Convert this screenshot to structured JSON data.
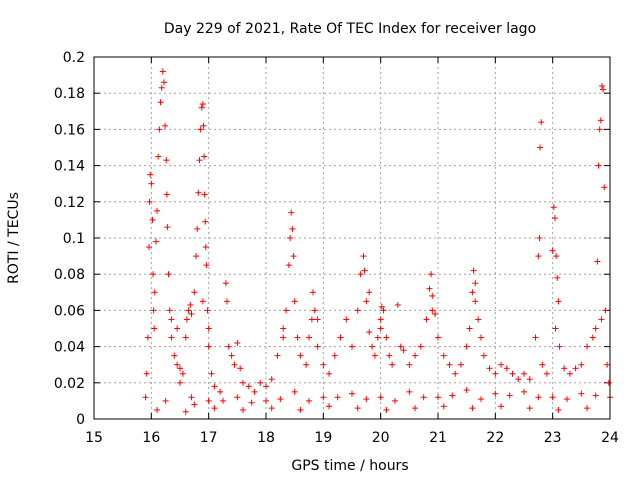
{
  "chart_data": {
    "type": "scatter",
    "title": "Day 229 of 2021, Rate Of TEC Index for receiver lago",
    "xlabel": "GPS time / hours",
    "ylabel": "ROTI / TECUs",
    "xlim": [
      15,
      24
    ],
    "ylim": [
      0,
      0.2
    ],
    "xticks": [
      15,
      16,
      17,
      18,
      19,
      20,
      21,
      22,
      23,
      24
    ],
    "yticks": [
      0,
      0.02,
      0.04,
      0.06,
      0.08,
      0.1,
      0.12,
      0.14,
      0.16,
      0.18,
      0.2
    ],
    "xtick_labels": [
      "15",
      "16",
      "17",
      "18",
      "19",
      "20",
      "21",
      "22",
      "23",
      "24"
    ],
    "ytick_labels": [
      "0",
      "0.02",
      "0.04",
      "0.06",
      "0.08",
      "0.1",
      "0.12",
      "0.14",
      "0.16",
      "0.18",
      "0.2"
    ],
    "grid": true,
    "marker": "plus",
    "color": "#ff0000",
    "series": [
      {
        "points": [
          [
            15.9,
            0.012
          ],
          [
            15.92,
            0.025
          ],
          [
            15.94,
            0.045
          ],
          [
            15.96,
            0.095
          ],
          [
            15.97,
            0.12
          ],
          [
            15.98,
            0.135
          ],
          [
            16.0,
            0.13
          ],
          [
            16.02,
            0.11
          ],
          [
            16.03,
            0.08
          ],
          [
            16.04,
            0.06
          ],
          [
            16.05,
            0.05
          ],
          [
            16.06,
            0.07
          ],
          [
            16.08,
            0.098
          ],
          [
            16.1,
            0.115
          ],
          [
            16.12,
            0.145
          ],
          [
            16.14,
            0.16
          ],
          [
            16.16,
            0.175
          ],
          [
            16.18,
            0.183
          ],
          [
            16.2,
            0.192
          ],
          [
            16.22,
            0.186
          ],
          [
            16.24,
            0.162
          ],
          [
            16.26,
            0.143
          ],
          [
            16.27,
            0.124
          ],
          [
            16.28,
            0.106
          ],
          [
            16.3,
            0.08
          ],
          [
            16.32,
            0.06
          ],
          [
            16.35,
            0.045
          ],
          [
            16.4,
            0.035
          ],
          [
            16.45,
            0.03
          ],
          [
            16.5,
            0.028
          ],
          [
            16.55,
            0.025
          ],
          [
            16.6,
            0.045
          ],
          [
            16.62,
            0.055
          ],
          [
            16.65,
            0.06
          ],
          [
            16.68,
            0.063
          ],
          [
            16.7,
            0.058
          ],
          [
            16.75,
            0.07
          ],
          [
            16.78,
            0.09
          ],
          [
            16.8,
            0.105
          ],
          [
            16.82,
            0.125
          ],
          [
            16.84,
            0.143
          ],
          [
            16.86,
            0.16
          ],
          [
            16.88,
            0.172
          ],
          [
            16.9,
            0.174
          ],
          [
            16.91,
            0.162
          ],
          [
            16.92,
            0.145
          ],
          [
            16.93,
            0.124
          ],
          [
            16.94,
            0.109
          ],
          [
            16.95,
            0.095
          ],
          [
            16.96,
            0.085
          ],
          [
            16.98,
            0.06
          ],
          [
            17.0,
            0.04
          ],
          [
            17.05,
            0.025
          ],
          [
            17.1,
            0.018
          ],
          [
            17.2,
            0.015
          ],
          [
            17.3,
            0.075
          ],
          [
            17.32,
            0.065
          ],
          [
            17.35,
            0.04
          ],
          [
            17.4,
            0.035
          ],
          [
            17.45,
            0.03
          ],
          [
            17.5,
            0.042
          ],
          [
            17.55,
            0.028
          ],
          [
            17.6,
            0.02
          ],
          [
            17.7,
            0.018
          ],
          [
            17.8,
            0.015
          ],
          [
            17.9,
            0.02
          ],
          [
            18.0,
            0.018
          ],
          [
            18.1,
            0.022
          ],
          [
            18.2,
            0.035
          ],
          [
            18.3,
            0.045
          ],
          [
            18.35,
            0.06
          ],
          [
            18.4,
            0.085
          ],
          [
            18.42,
            0.1
          ],
          [
            18.44,
            0.114
          ],
          [
            18.46,
            0.105
          ],
          [
            18.48,
            0.09
          ],
          [
            18.5,
            0.065
          ],
          [
            18.55,
            0.045
          ],
          [
            18.6,
            0.035
          ],
          [
            18.7,
            0.03
          ],
          [
            18.75,
            0.045
          ],
          [
            18.8,
            0.055
          ],
          [
            18.82,
            0.07
          ],
          [
            18.85,
            0.06
          ],
          [
            18.9,
            0.04
          ],
          [
            19.0,
            0.03
          ],
          [
            19.1,
            0.025
          ],
          [
            19.2,
            0.035
          ],
          [
            19.3,
            0.045
          ],
          [
            19.4,
            0.055
          ],
          [
            19.5,
            0.04
          ],
          [
            19.6,
            0.06
          ],
          [
            19.65,
            0.08
          ],
          [
            19.7,
            0.09
          ],
          [
            19.72,
            0.082
          ],
          [
            19.75,
            0.065
          ],
          [
            19.8,
            0.048
          ],
          [
            19.85,
            0.04
          ],
          [
            19.9,
            0.035
          ],
          [
            19.95,
            0.045
          ],
          [
            20.0,
            0.055
          ],
          [
            20.02,
            0.062
          ],
          [
            20.05,
            0.06
          ],
          [
            20.1,
            0.045
          ],
          [
            20.15,
            0.035
          ],
          [
            20.2,
            0.03
          ],
          [
            20.3,
            0.063
          ],
          [
            20.35,
            0.04
          ],
          [
            20.4,
            0.038
          ],
          [
            20.5,
            0.03
          ],
          [
            20.6,
            0.035
          ],
          [
            20.7,
            0.04
          ],
          [
            20.8,
            0.055
          ],
          [
            20.85,
            0.072
          ],
          [
            20.88,
            0.08
          ],
          [
            20.9,
            0.068
          ],
          [
            20.95,
            0.058
          ],
          [
            21.0,
            0.045
          ],
          [
            21.1,
            0.035
          ],
          [
            21.2,
            0.03
          ],
          [
            21.3,
            0.025
          ],
          [
            21.4,
            0.03
          ],
          [
            21.5,
            0.04
          ],
          [
            21.55,
            0.05
          ],
          [
            21.6,
            0.07
          ],
          [
            21.62,
            0.082
          ],
          [
            21.65,
            0.075
          ],
          [
            21.7,
            0.055
          ],
          [
            21.75,
            0.045
          ],
          [
            21.8,
            0.035
          ],
          [
            21.9,
            0.028
          ],
          [
            22.0,
            0.025
          ],
          [
            22.1,
            0.03
          ],
          [
            22.2,
            0.028
          ],
          [
            22.3,
            0.025
          ],
          [
            22.4,
            0.022
          ],
          [
            22.5,
            0.025
          ],
          [
            22.6,
            0.022
          ],
          [
            22.7,
            0.045
          ],
          [
            22.75,
            0.09
          ],
          [
            22.77,
            0.1
          ],
          [
            22.78,
            0.15
          ],
          [
            22.8,
            0.164
          ],
          [
            22.82,
            0.03
          ],
          [
            22.9,
            0.025
          ],
          [
            23.0,
            0.093
          ],
          [
            23.02,
            0.117
          ],
          [
            23.04,
            0.111
          ],
          [
            23.06,
            0.09
          ],
          [
            23.08,
            0.078
          ],
          [
            23.1,
            0.065
          ],
          [
            23.12,
            0.04
          ],
          [
            23.2,
            0.028
          ],
          [
            23.3,
            0.025
          ],
          [
            23.4,
            0.028
          ],
          [
            23.5,
            0.03
          ],
          [
            23.6,
            0.04
          ],
          [
            23.7,
            0.045
          ],
          [
            23.75,
            0.05
          ],
          [
            23.78,
            0.087
          ],
          [
            23.8,
            0.14
          ],
          [
            23.82,
            0.16
          ],
          [
            23.84,
            0.165
          ],
          [
            23.86,
            0.184
          ],
          [
            23.88,
            0.182
          ],
          [
            23.9,
            0.128
          ],
          [
            23.92,
            0.06
          ],
          [
            23.95,
            0.03
          ],
          [
            23.98,
            0.02
          ],
          [
            16.5,
            0.02
          ],
          [
            16.7,
            0.012
          ],
          [
            17.0,
            0.01
          ],
          [
            17.5,
            0.012
          ],
          [
            18.0,
            0.01
          ],
          [
            18.5,
            0.015
          ],
          [
            19.0,
            0.012
          ],
          [
            19.5,
            0.014
          ],
          [
            20.0,
            0.012
          ],
          [
            20.5,
            0.015
          ],
          [
            21.0,
            0.012
          ],
          [
            21.5,
            0.016
          ],
          [
            22.0,
            0.014
          ],
          [
            22.5,
            0.015
          ],
          [
            23.0,
            0.012
          ],
          [
            23.5,
            0.014
          ],
          [
            24.0,
            0.012
          ],
          [
            16.25,
            0.01
          ],
          [
            16.75,
            0.008
          ],
          [
            17.25,
            0.01
          ],
          [
            17.75,
            0.009
          ],
          [
            18.25,
            0.011
          ],
          [
            18.75,
            0.01
          ],
          [
            19.25,
            0.012
          ],
          [
            19.75,
            0.011
          ],
          [
            20.25,
            0.01
          ],
          [
            20.75,
            0.012
          ],
          [
            21.25,
            0.013
          ],
          [
            21.75,
            0.011
          ],
          [
            22.25,
            0.013
          ],
          [
            22.75,
            0.012
          ],
          [
            23.25,
            0.011
          ],
          [
            23.75,
            0.013
          ],
          [
            16.1,
            0.005
          ],
          [
            16.6,
            0.004
          ],
          [
            17.1,
            0.006
          ],
          [
            17.6,
            0.005
          ],
          [
            18.1,
            0.006
          ],
          [
            18.6,
            0.005
          ],
          [
            19.1,
            0.007
          ],
          [
            19.6,
            0.006
          ],
          [
            20.1,
            0.005
          ],
          [
            20.6,
            0.006
          ],
          [
            21.1,
            0.007
          ],
          [
            21.6,
            0.006
          ],
          [
            22.1,
            0.007
          ],
          [
            22.6,
            0.006
          ],
          [
            23.1,
            0.005
          ],
          [
            23.6,
            0.006
          ],
          [
            16.35,
            0.055
          ],
          [
            16.45,
            0.05
          ],
          [
            16.9,
            0.065
          ],
          [
            17.0,
            0.05
          ],
          [
            18.3,
            0.05
          ],
          [
            18.9,
            0.055
          ],
          [
            19.8,
            0.07
          ],
          [
            20.0,
            0.05
          ],
          [
            20.9,
            0.06
          ],
          [
            21.65,
            0.065
          ],
          [
            23.05,
            0.05
          ],
          [
            23.85,
            0.055
          ]
        ]
      }
    ]
  }
}
